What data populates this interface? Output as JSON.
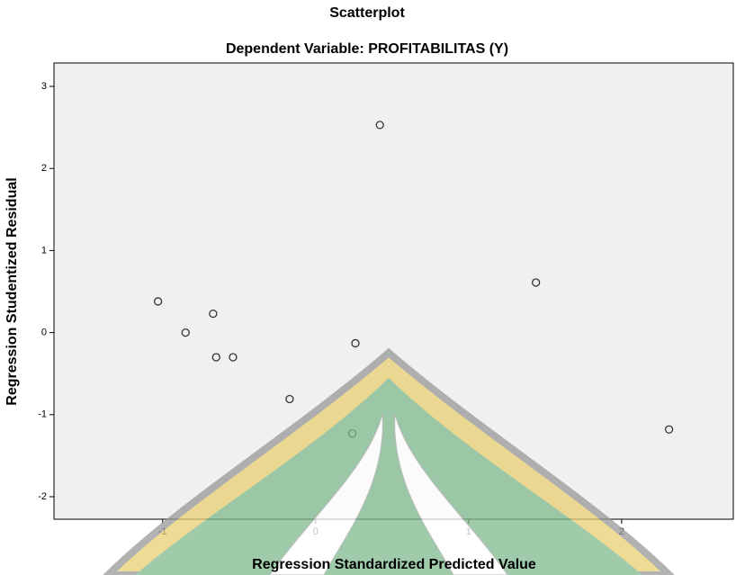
{
  "chart_data": {
    "type": "scatter",
    "title": "Scatterplot",
    "subtitle": "Dependent Variable: PROFITABILITAS (Y)",
    "x_label": "Regression Standardized Predicted Value",
    "y_label": "Regression Studentized Residual",
    "x": [
      -1.03,
      -0.85,
      -0.67,
      -0.65,
      -0.54,
      -0.17,
      0.26,
      0.24,
      0.42,
      1.44,
      2.31
    ],
    "y": [
      0.38,
      0.0,
      0.23,
      -0.3,
      -0.3,
      -0.81,
      -0.13,
      -1.23,
      2.53,
      0.61,
      -1.18
    ],
    "xlim": [
      -1.71,
      2.73
    ],
    "ylim": [
      -2.274,
      3.285
    ],
    "xticks": [
      -1,
      0,
      1,
      2
    ],
    "yticks": [
      -2,
      -1,
      0,
      1,
      2,
      3
    ],
    "color": "#333333"
  }
}
